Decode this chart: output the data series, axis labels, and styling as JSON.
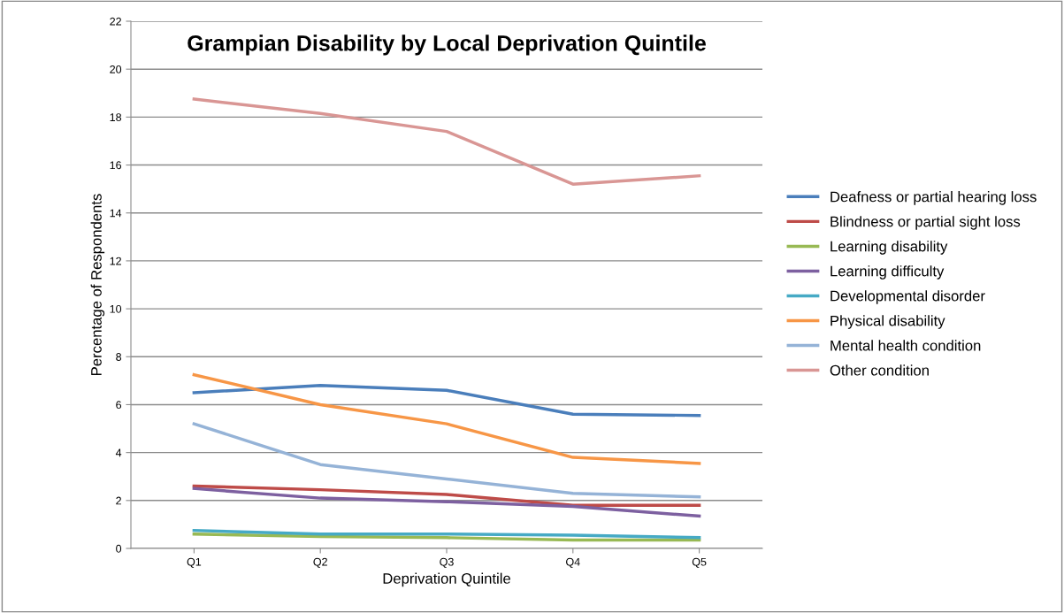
{
  "chart_data": {
    "type": "line",
    "title": "Grampian Disability by Local Deprivation Quintile",
    "xlabel": "Deprivation Quintile",
    "ylabel": "Percentage of Respondents",
    "categories": [
      "Q1",
      "Q2",
      "Q3",
      "Q4",
      "Q5"
    ],
    "series": [
      {
        "name": "Deafness or partial hearing loss",
        "color": "#4a7ebb",
        "values": [
          6.5,
          6.8,
          6.6,
          5.6,
          5.55
        ]
      },
      {
        "name": "Blindness or partial sight loss",
        "color": "#be4b48",
        "values": [
          2.6,
          2.45,
          2.25,
          1.8,
          1.8
        ]
      },
      {
        "name": "Learning disability",
        "color": "#98b954",
        "values": [
          0.6,
          0.5,
          0.45,
          0.35,
          0.35
        ]
      },
      {
        "name": "Learning difficulty",
        "color": "#7d60a0",
        "values": [
          2.5,
          2.1,
          1.95,
          1.75,
          1.35
        ]
      },
      {
        "name": "Developmental disorder",
        "color": "#46aac5",
        "values": [
          0.75,
          0.6,
          0.6,
          0.55,
          0.45
        ]
      },
      {
        "name": "Physical disability",
        "color": "#f79646",
        "values": [
          7.25,
          6.0,
          5.2,
          3.8,
          3.55
        ]
      },
      {
        "name": "Mental health condition",
        "color": "#95b3d7",
        "values": [
          5.2,
          3.5,
          2.9,
          2.3,
          2.15
        ]
      },
      {
        "name": "Other condition",
        "color": "#d99694",
        "values": [
          18.75,
          18.15,
          17.4,
          15.2,
          15.55
        ]
      }
    ],
    "ylim": [
      0,
      22
    ],
    "yticks": [
      0,
      2,
      4,
      6,
      8,
      10,
      12,
      14,
      16,
      18,
      20,
      22
    ],
    "grid": "y",
    "legend": "right",
    "marker": "none",
    "line_style": "solid"
  }
}
